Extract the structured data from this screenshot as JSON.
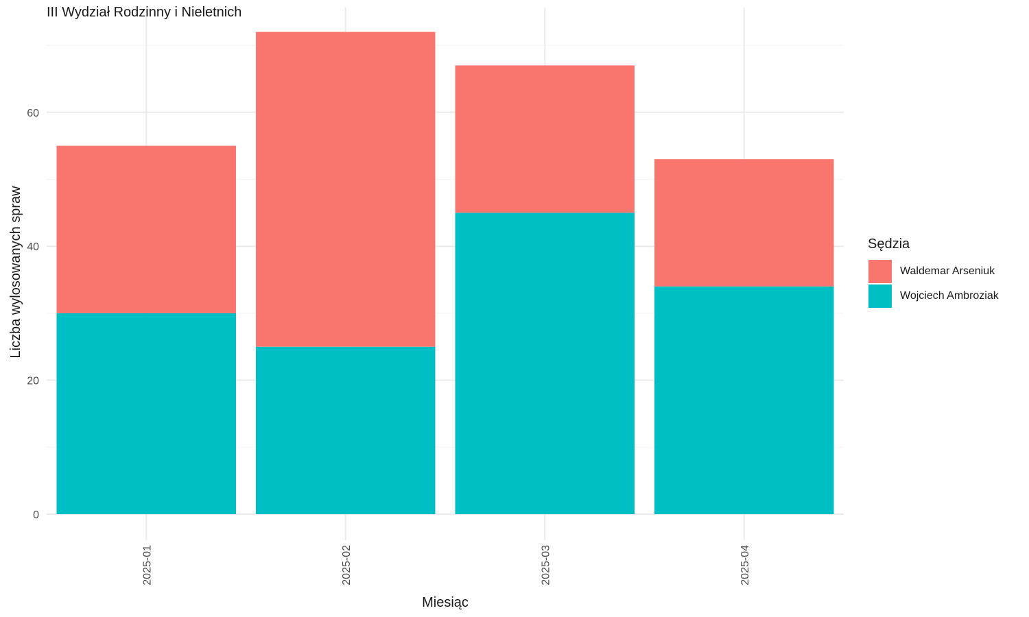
{
  "chart_data": {
    "type": "bar",
    "stacked": true,
    "title": "III Wydział Rodzinny i Nieletnich",
    "xlabel": "Miesiąc",
    "ylabel": "Liczba wylosowanych spraw",
    "categories": [
      "2025-01",
      "2025-02",
      "2025-03",
      "2025-04"
    ],
    "yticks": [
      "0",
      "20",
      "40",
      "60"
    ],
    "ylim": [
      0,
      74
    ],
    "grid": true,
    "legend": {
      "title": "Sędzia",
      "position": "right"
    },
    "series": [
      {
        "name": "Waldemar Arseniuk",
        "color": "#F8766D",
        "values": [
          25,
          47,
          22,
          19
        ]
      },
      {
        "name": "Wojciech Ambroziak",
        "color": "#00BFC4",
        "values": [
          30,
          25,
          45,
          34
        ]
      }
    ]
  }
}
